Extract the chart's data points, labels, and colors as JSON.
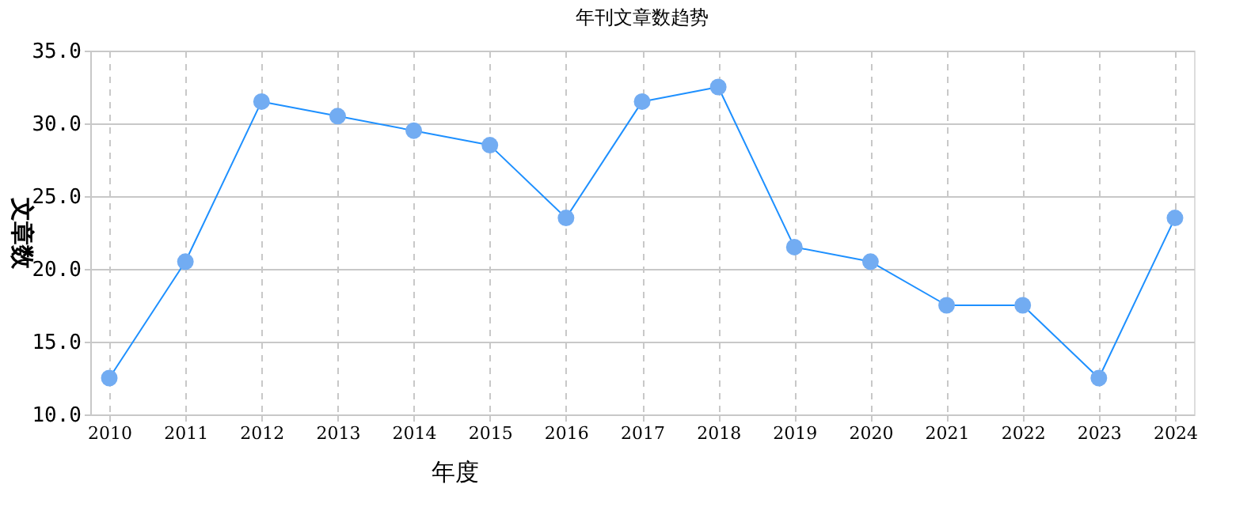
{
  "chart_data": {
    "type": "line",
    "title": "年刊文章数趋势",
    "xlabel": "年度",
    "ylabel": "文章数",
    "categories": [
      "2010",
      "2011",
      "2012",
      "2013",
      "2014",
      "2015",
      "2016",
      "2017",
      "2018",
      "2019",
      "2020",
      "2021",
      "2022",
      "2023",
      "2024"
    ],
    "series": [
      {
        "color": "#1e90ff",
        "values": [
          12.5,
          20.5,
          31.5,
          30.5,
          29.5,
          28.5,
          23.5,
          31.5,
          32.5,
          21.5,
          20.5,
          17.5,
          17.5,
          12.5,
          23.5
        ]
      }
    ],
    "ylim": [
      10,
      35
    ],
    "yticks": [
      {
        "value": 10,
        "label": "10.0"
      },
      {
        "value": 15,
        "label": "15.0"
      },
      {
        "value": 20,
        "label": "20.0"
      },
      {
        "value": 25,
        "label": "25.0"
      },
      {
        "value": 30,
        "label": "30.0"
      },
      {
        "value": 35,
        "label": "35.0"
      }
    ],
    "grid": true,
    "marker": "circle"
  }
}
